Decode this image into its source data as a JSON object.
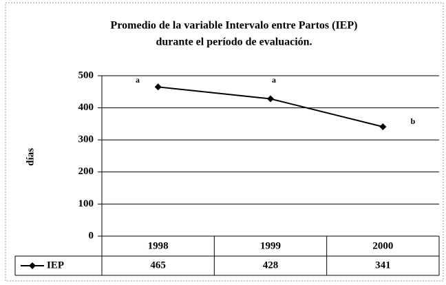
{
  "chart_data": {
    "type": "line",
    "title": [
      "Promedio de la variable Intervalo entre Partos (IEP)",
      "durante el período de evaluación."
    ],
    "y_label": "días",
    "categories": [
      "1998",
      "1999",
      "2000"
    ],
    "series": [
      {
        "name": "IEP",
        "color": "#000000",
        "values": [
          465,
          428,
          341
        ]
      }
    ],
    "annotations": [
      "a",
      "a",
      "b"
    ],
    "ylim": [
      0,
      500
    ],
    "yticks": [
      0,
      100,
      200,
      300,
      400,
      500
    ],
    "grid": true
  }
}
